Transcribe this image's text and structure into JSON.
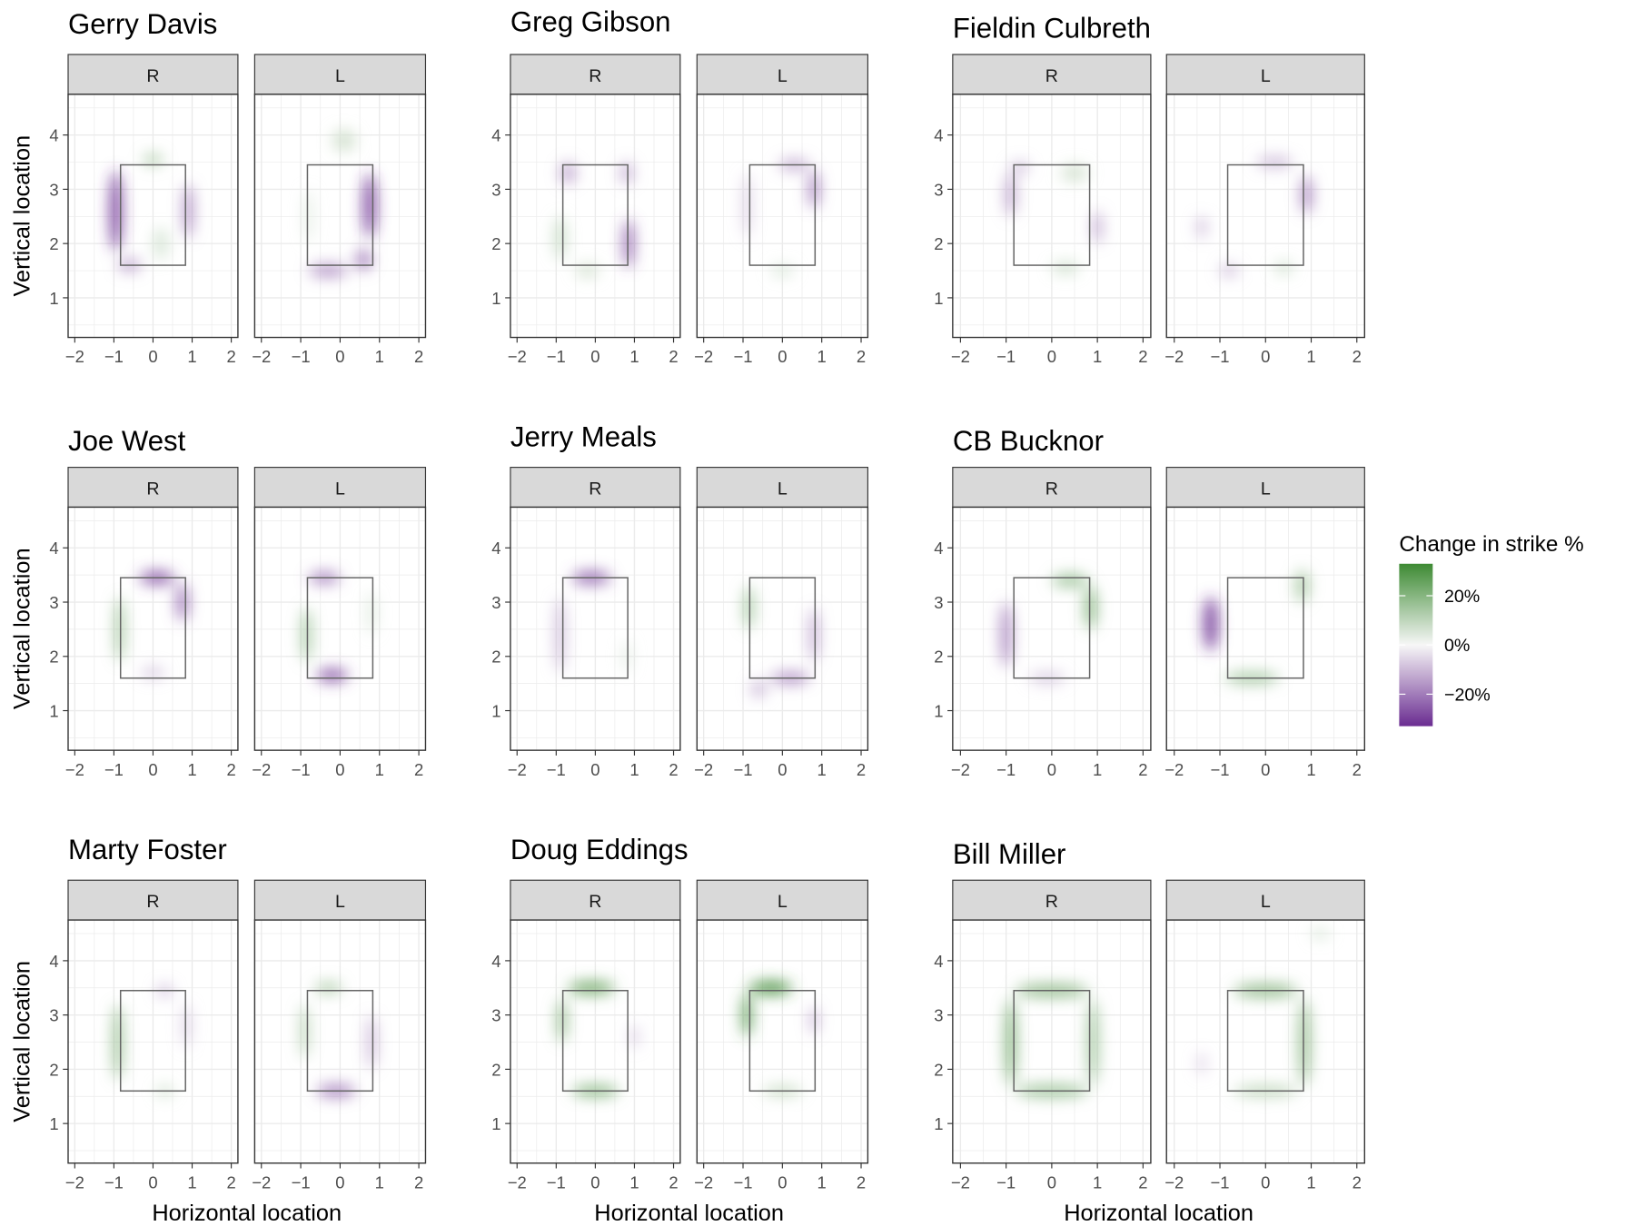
{
  "chart_data": {
    "type": "heatmap",
    "xlabel": "Horizontal location",
    "ylabel": "Vertical location",
    "xlim": [
      -2.17,
      2.17
    ],
    "ylim": [
      0.27,
      4.75
    ],
    "x_ticks": [
      "−2",
      "−1",
      "0",
      "1",
      "2"
    ],
    "x_tick_values": [
      -2,
      -1,
      0,
      1,
      2
    ],
    "y_ticks": [
      "1",
      "2",
      "3",
      "4"
    ],
    "y_tick_values": [
      1,
      2,
      3,
      4
    ],
    "grid": true,
    "strike_zone": {
      "x": [
        -0.83,
        0.83
      ],
      "y": [
        1.6,
        3.45
      ]
    },
    "facets": [
      "R",
      "L"
    ],
    "legend": {
      "title": "Change in strike %",
      "placement": "right",
      "labels": [
        "20%",
        "0%",
        "−20%"
      ],
      "label_values": [
        20,
        0,
        -20
      ],
      "limits": [
        -33,
        33
      ],
      "colors": {
        "high": "#3d8a33",
        "mid": "#f7f7f7",
        "low": "#6a2c91"
      }
    },
    "blob_format": [
      "x",
      "y",
      "spread_x",
      "spread_y",
      "change_pct"
    ],
    "umpires": [
      {
        "name": "Gerry Davis",
        "panels": {
          "R": [
            [
              -0.95,
              2.6,
              0.15,
              0.75,
              -28
            ],
            [
              0.9,
              2.6,
              0.12,
              0.5,
              -14
            ],
            [
              0,
              3.55,
              0.25,
              0.1,
              10
            ],
            [
              -0.6,
              1.6,
              0.3,
              0.12,
              -10
            ],
            [
              0.2,
              2.0,
              0.2,
              0.3,
              4
            ]
          ],
          "L": [
            [
              0.75,
              2.7,
              0.15,
              0.6,
              -24
            ],
            [
              -0.3,
              1.5,
              0.5,
              0.12,
              -12
            ],
            [
              0.6,
              1.7,
              0.2,
              0.2,
              -14
            ],
            [
              0.1,
              3.9,
              0.3,
              0.2,
              5
            ],
            [
              -0.8,
              2.5,
              0.1,
              0.5,
              3
            ]
          ]
        }
      },
      {
        "name": "Greg Gibson",
        "panels": {
          "R": [
            [
              -0.7,
              3.3,
              0.2,
              0.2,
              -10
            ],
            [
              0.8,
              3.3,
              0.15,
              0.2,
              -10
            ],
            [
              0.85,
              2.0,
              0.12,
              0.45,
              -20
            ],
            [
              -0.9,
              2.1,
              0.15,
              0.4,
              6
            ],
            [
              -0.2,
              1.5,
              0.3,
              0.12,
              5
            ]
          ],
          "L": [
            [
              0.8,
              3.0,
              0.12,
              0.35,
              -16
            ],
            [
              0.3,
              3.45,
              0.4,
              0.1,
              -10
            ],
            [
              -0.9,
              2.7,
              0.1,
              0.6,
              -6
            ],
            [
              0,
              1.5,
              0.3,
              0.1,
              4
            ]
          ]
        }
      },
      {
        "name": "Fieldin Culbreth",
        "panels": {
          "R": [
            [
              -0.9,
              2.9,
              0.12,
              0.4,
              -10
            ],
            [
              1.0,
              2.3,
              0.1,
              0.3,
              -10
            ],
            [
              0.5,
              3.3,
              0.3,
              0.15,
              5
            ],
            [
              0.3,
              1.55,
              0.3,
              0.1,
              6
            ],
            [
              -0.7,
              3.4,
              0.2,
              0.1,
              -8
            ]
          ],
          "L": [
            [
              0.9,
              2.9,
              0.12,
              0.35,
              -14
            ],
            [
              0.2,
              3.5,
              0.4,
              0.1,
              -8
            ],
            [
              -1.4,
              2.3,
              0.1,
              0.2,
              -8
            ],
            [
              -0.8,
              1.5,
              0.2,
              0.1,
              -8
            ],
            [
              0.4,
              1.55,
              0.2,
              0.1,
              6
            ]
          ]
        }
      },
      {
        "name": "Joe West",
        "panels": {
          "R": [
            [
              0.1,
              3.45,
              0.45,
              0.12,
              -20
            ],
            [
              0.75,
              3.0,
              0.15,
              0.35,
              -16
            ],
            [
              -0.85,
              2.5,
              0.1,
              0.6,
              14
            ],
            [
              0,
              1.7,
              0.3,
              0.1,
              -6
            ]
          ],
          "L": [
            [
              -0.4,
              3.45,
              0.4,
              0.1,
              -16
            ],
            [
              -0.2,
              1.65,
              0.4,
              0.12,
              -20
            ],
            [
              -0.85,
              2.4,
              0.12,
              0.5,
              12
            ],
            [
              0.8,
              2.8,
              0.1,
              0.4,
              4
            ]
          ]
        }
      },
      {
        "name": "Jerry Meals",
        "panels": {
          "R": [
            [
              -0.1,
              3.45,
              0.5,
              0.12,
              -18
            ],
            [
              -0.9,
              2.4,
              0.12,
              0.7,
              -8
            ],
            [
              0.8,
              2.0,
              0.1,
              0.3,
              3
            ]
          ],
          "L": [
            [
              -0.85,
              2.9,
              0.12,
              0.4,
              12
            ],
            [
              0.8,
              2.4,
              0.1,
              0.5,
              -12
            ],
            [
              0.2,
              1.6,
              0.5,
              0.1,
              -14
            ],
            [
              -0.6,
              1.4,
              0.2,
              0.15,
              -8
            ]
          ]
        }
      },
      {
        "name": "CB Bucknor",
        "panels": {
          "R": [
            [
              -1.0,
              2.4,
              0.12,
              0.6,
              -14
            ],
            [
              0.4,
              3.4,
              0.4,
              0.12,
              12
            ],
            [
              0.85,
              2.9,
              0.12,
              0.4,
              16
            ],
            [
              -0.1,
              1.6,
              0.4,
              0.1,
              -6
            ]
          ],
          "L": [
            [
              -1.2,
              2.6,
              0.15,
              0.5,
              -28
            ],
            [
              -0.3,
              1.6,
              0.6,
              0.1,
              12
            ],
            [
              0.8,
              3.3,
              0.15,
              0.3,
              10
            ]
          ]
        }
      },
      {
        "name": "Marty Foster",
        "panels": {
          "R": [
            [
              -0.9,
              2.5,
              0.12,
              0.7,
              14
            ],
            [
              0.3,
              3.45,
              0.2,
              0.1,
              -8
            ],
            [
              0.85,
              2.8,
              0.1,
              0.4,
              -6
            ],
            [
              0.3,
              1.6,
              0.2,
              0.1,
              6
            ]
          ],
          "L": [
            [
              -0.3,
              3.5,
              0.35,
              0.1,
              10
            ],
            [
              -0.9,
              2.7,
              0.1,
              0.5,
              10
            ],
            [
              -0.1,
              1.6,
              0.5,
              0.12,
              -14
            ],
            [
              0.8,
              2.5,
              0.1,
              0.5,
              -10
            ]
          ]
        }
      },
      {
        "name": "Doug Eddings",
        "panels": {
          "R": [
            [
              -0.1,
              3.5,
              0.6,
              0.12,
              18
            ],
            [
              -0.85,
              2.9,
              0.12,
              0.4,
              14
            ],
            [
              0,
              1.6,
              0.6,
              0.1,
              16
            ],
            [
              1.0,
              2.6,
              0.08,
              0.2,
              -8
            ]
          ],
          "L": [
            [
              -0.3,
              3.5,
              0.55,
              0.12,
              24
            ],
            [
              -0.9,
              3.0,
              0.12,
              0.4,
              22
            ],
            [
              0.8,
              2.9,
              0.08,
              0.25,
              -12
            ],
            [
              0,
              1.6,
              0.5,
              0.08,
              8
            ]
          ]
        }
      },
      {
        "name": "Bill Miller",
        "panels": {
          "R": [
            [
              0,
              3.45,
              0.8,
              0.12,
              14
            ],
            [
              0,
              1.6,
              0.8,
              0.12,
              12
            ],
            [
              -0.9,
              2.5,
              0.12,
              0.8,
              16
            ],
            [
              0.9,
              2.5,
              0.12,
              0.8,
              12
            ]
          ],
          "L": [
            [
              0,
              3.45,
              0.7,
              0.12,
              14
            ],
            [
              0.85,
              2.5,
              0.12,
              0.8,
              14
            ],
            [
              0,
              1.6,
              0.7,
              0.1,
              8
            ],
            [
              -1.4,
              2.1,
              0.08,
              0.2,
              -6
            ],
            [
              1.2,
              4.5,
              0.2,
              0.1,
              4
            ]
          ]
        }
      }
    ]
  }
}
